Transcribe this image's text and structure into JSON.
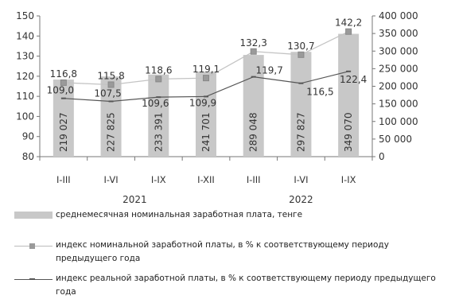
{
  "chart_data": {
    "type": "bar",
    "categories": [
      "I-III",
      "I-VI",
      "I-IX",
      "I-XII",
      "I-III",
      "I-VI",
      "I-IX"
    ],
    "year_labels": [
      "2021",
      "2022"
    ],
    "bar_series": {
      "name": "среднемесячная номинальная заработная плата, тенге",
      "values": [
        219027,
        227825,
        233391,
        241701,
        289048,
        297827,
        349070
      ],
      "value_labels": [
        "219 027",
        "227 825",
        "233 391",
        "241 701",
        "289 048",
        "297 827",
        "349 070"
      ],
      "color": "#c8c8c8"
    },
    "line_series": [
      {
        "name": "индекс номинальной заработной платы, в % к соответствующему периоду предыдущего года",
        "values": [
          116.8,
          115.8,
          118.6,
          119.1,
          132.3,
          130.7,
          142.2
        ],
        "value_labels": [
          "116,8",
          "115,8",
          "118,6",
          "119,1",
          "132,3",
          "130,7",
          "142,2"
        ],
        "color": "#c4c4c4",
        "marker": "square"
      },
      {
        "name": "индекс реальной заработной платы, в % к соответствующему периоду предыдущего года",
        "values": [
          109.0,
          107.5,
          109.6,
          109.9,
          119.7,
          116.5,
          122.4
        ],
        "value_labels": [
          "109,0",
          "107,5",
          "109,6",
          "109,9",
          "119,7",
          "116,5",
          "122,4"
        ],
        "color": "#555555",
        "marker": "dash"
      }
    ],
    "y_left": {
      "min": 80,
      "max": 150,
      "step": 10,
      "tick_labels": [
        "80",
        "90",
        "100",
        "110",
        "120",
        "130",
        "140",
        "150"
      ]
    },
    "y_right": {
      "min": 0,
      "max": 400000,
      "step": 50000,
      "tick_labels": [
        "0",
        "50 000",
        "100 000",
        "150 000",
        "200 000",
        "250 000",
        "300 000",
        "350 000",
        "400 000"
      ]
    },
    "title": "",
    "xlabel": "",
    "ylabel": "",
    "grid": false,
    "legend_position": "bottom"
  }
}
